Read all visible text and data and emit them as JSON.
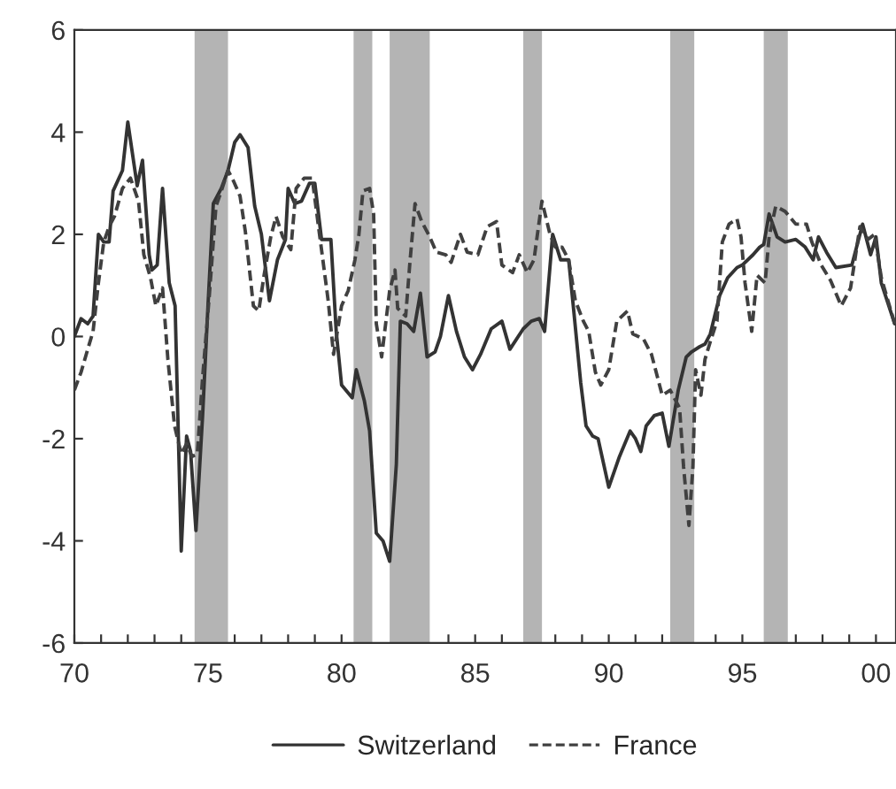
{
  "chart_data": {
    "type": "line",
    "xlim": [
      1970,
      2000.75
    ],
    "xticks": [
      {
        "value": 1970,
        "label": "70"
      },
      {
        "value": 1971,
        "label": null
      },
      {
        "value": 1972,
        "label": null
      },
      {
        "value": 1973,
        "label": null
      },
      {
        "value": 1974,
        "label": null
      },
      {
        "value": 1975,
        "label": "75"
      },
      {
        "value": 1976,
        "label": null
      },
      {
        "value": 1977,
        "label": null
      },
      {
        "value": 1978,
        "label": null
      },
      {
        "value": 1979,
        "label": null
      },
      {
        "value": 1980,
        "label": "80"
      },
      {
        "value": 1981,
        "label": null
      },
      {
        "value": 1982,
        "label": null
      },
      {
        "value": 1983,
        "label": null
      },
      {
        "value": 1984,
        "label": null
      },
      {
        "value": 1985,
        "label": "85"
      },
      {
        "value": 1986,
        "label": null
      },
      {
        "value": 1987,
        "label": null
      },
      {
        "value": 1988,
        "label": null
      },
      {
        "value": 1989,
        "label": null
      },
      {
        "value": 1990,
        "label": "90"
      },
      {
        "value": 1991,
        "label": null
      },
      {
        "value": 1992,
        "label": null
      },
      {
        "value": 1993,
        "label": null
      },
      {
        "value": 1994,
        "label": null
      },
      {
        "value": 1995,
        "label": "95"
      },
      {
        "value": 1996,
        "label": null
      },
      {
        "value": 1997,
        "label": null
      },
      {
        "value": 1998,
        "label": null
      },
      {
        "value": 1999,
        "label": null
      },
      {
        "value": 2000,
        "label": "00"
      }
    ],
    "ylim": [
      -6,
      6
    ],
    "yticks": [
      -6,
      -4,
      -2,
      0,
      2,
      4,
      6
    ],
    "grid": false,
    "legend": "bottom",
    "bands": [
      {
        "axis": "x",
        "from": 1974.5,
        "to": 1975.75,
        "color": "#b4b4b4"
      },
      {
        "axis": "x",
        "from": 1980.45,
        "to": 1981.15,
        "color": "#b4b4b4"
      },
      {
        "axis": "x",
        "from": 1981.8,
        "to": 1983.3,
        "color": "#b4b4b4"
      },
      {
        "axis": "x",
        "from": 1986.8,
        "to": 1987.5,
        "color": "#b4b4b4"
      },
      {
        "axis": "x",
        "from": 1992.3,
        "to": 1993.2,
        "color": "#b4b4b4"
      },
      {
        "axis": "x",
        "from": 1995.8,
        "to": 1996.7,
        "color": "#b4b4b4"
      }
    ],
    "series": [
      {
        "name": "Switzerland",
        "color": "#333333",
        "line_style": "solid",
        "x": [
          1970.0,
          1970.25,
          1970.5,
          1970.7,
          1970.9,
          1971.1,
          1971.3,
          1971.45,
          1971.8,
          1972.0,
          1972.35,
          1972.55,
          1972.8,
          1972.9,
          1973.1,
          1973.3,
          1973.55,
          1973.77,
          1974.0,
          1974.2,
          1974.35,
          1974.55,
          1974.8,
          1975.0,
          1975.2,
          1975.5,
          1975.75,
          1976.0,
          1976.2,
          1976.5,
          1976.75,
          1977.0,
          1977.3,
          1977.6,
          1977.9,
          1978.0,
          1978.25,
          1978.5,
          1978.8,
          1979.0,
          1979.25,
          1979.6,
          1979.8,
          1980.0,
          1980.4,
          1980.55,
          1980.85,
          1981.05,
          1981.3,
          1981.55,
          1981.8,
          1982.05,
          1982.2,
          1982.45,
          1982.7,
          1982.95,
          1983.2,
          1983.5,
          1983.7,
          1984.0,
          1984.3,
          1984.6,
          1984.9,
          1985.2,
          1985.6,
          1986.0,
          1986.3,
          1986.8,
          1987.1,
          1987.4,
          1987.6,
          1987.9,
          1988.2,
          1988.5,
          1988.7,
          1988.95,
          1989.15,
          1989.4,
          1989.6,
          1990.0,
          1990.4,
          1990.8,
          1991.0,
          1991.2,
          1991.4,
          1991.7,
          1992.0,
          1992.25,
          1992.6,
          1992.9,
          1993.1,
          1993.4,
          1993.6,
          1993.8,
          1994.15,
          1994.45,
          1994.8,
          1995.0,
          1995.4,
          1995.65,
          1995.8,
          1996.0,
          1996.3,
          1996.6,
          1997.0,
          1997.35,
          1997.65,
          1997.85,
          1998.15,
          1998.5,
          1999.1,
          1999.5,
          1999.8,
          2000.0,
          2000.2,
          2000.7
        ],
        "values": [
          0.0,
          0.35,
          0.25,
          0.4,
          2.0,
          1.85,
          1.85,
          2.85,
          3.25,
          4.2,
          2.95,
          3.45,
          1.6,
          1.3,
          1.4,
          2.9,
          1.05,
          0.6,
          -4.2,
          -1.95,
          -2.25,
          -3.8,
          -1.55,
          0.6,
          2.6,
          2.9,
          3.25,
          3.8,
          3.95,
          3.7,
          2.55,
          2.0,
          0.7,
          1.5,
          1.9,
          2.9,
          2.6,
          2.65,
          3.0,
          3.0,
          1.9,
          1.9,
          0.1,
          -0.95,
          -1.2,
          -0.65,
          -1.25,
          -1.85,
          -3.85,
          -4.0,
          -4.4,
          -2.5,
          0.3,
          0.25,
          0.1,
          0.85,
          -0.4,
          -0.3,
          0.0,
          0.8,
          0.1,
          -0.4,
          -0.65,
          -0.35,
          0.15,
          0.3,
          -0.25,
          0.15,
          0.3,
          0.35,
          0.1,
          2.0,
          1.5,
          1.5,
          0.45,
          -0.9,
          -1.75,
          -1.95,
          -2.0,
          -2.95,
          -2.35,
          -1.85,
          -2.0,
          -2.25,
          -1.75,
          -1.55,
          -1.5,
          -2.15,
          -1.05,
          -0.4,
          -0.3,
          -0.2,
          -0.15,
          0.05,
          0.8,
          1.15,
          1.35,
          1.4,
          1.6,
          1.75,
          1.8,
          2.4,
          1.95,
          1.85,
          1.9,
          1.75,
          1.5,
          1.95,
          1.65,
          1.35,
          1.4,
          2.2,
          1.6,
          1.95,
          1.05,
          0.25
        ]
      },
      {
        "name": "France",
        "color": "#404040",
        "line_style": "dashed",
        "x": [
          1970.0,
          1970.25,
          1970.5,
          1970.7,
          1970.9,
          1971.1,
          1971.3,
          1971.5,
          1971.8,
          1972.1,
          1972.4,
          1972.6,
          1972.85,
          1973.05,
          1973.3,
          1973.5,
          1973.75,
          1974.0,
          1974.2,
          1974.4,
          1974.6,
          1974.8,
          1975.05,
          1975.3,
          1975.5,
          1975.75,
          1975.95,
          1976.2,
          1976.4,
          1976.7,
          1976.9,
          1977.1,
          1977.35,
          1977.55,
          1977.8,
          1978.1,
          1978.3,
          1978.6,
          1978.9,
          1979.25,
          1979.5,
          1979.7,
          1980.0,
          1980.25,
          1980.5,
          1980.65,
          1980.8,
          1981.05,
          1981.2,
          1981.3,
          1981.5,
          1981.8,
          1982.0,
          1982.1,
          1982.4,
          1982.55,
          1982.75,
          1983.0,
          1983.3,
          1983.55,
          1983.9,
          1984.1,
          1984.45,
          1984.7,
          1985.1,
          1985.45,
          1985.8,
          1986.0,
          1986.4,
          1986.65,
          1986.95,
          1987.2,
          1987.5,
          1987.8,
          1988.0,
          1988.25,
          1988.5,
          1988.75,
          1989.05,
          1989.25,
          1989.5,
          1989.7,
          1990.0,
          1990.3,
          1990.7,
          1990.9,
          1991.3,
          1991.6,
          1992.0,
          1992.3,
          1992.65,
          1992.8,
          1993.0,
          1993.15,
          1993.25,
          1993.45,
          1993.6,
          1993.8,
          1994.05,
          1994.25,
          1994.5,
          1994.8,
          1994.95,
          1995.1,
          1995.35,
          1995.55,
          1995.85,
          1996.0,
          1996.25,
          1996.6,
          1997.0,
          1997.4,
          1997.6,
          1997.95,
          1998.3,
          1998.7,
          1999.05,
          1999.4,
          1999.7,
          1999.95,
          2000.2,
          2000.7
        ],
        "values": [
          -1.05,
          -0.7,
          -0.25,
          0.1,
          1.05,
          1.85,
          2.15,
          2.35,
          2.9,
          3.1,
          2.65,
          1.6,
          1.15,
          0.6,
          0.95,
          -0.45,
          -1.75,
          -2.3,
          -2.1,
          -2.35,
          -2.3,
          -0.8,
          0.8,
          2.55,
          2.85,
          3.25,
          3.05,
          2.75,
          2.05,
          0.6,
          0.5,
          1.2,
          1.95,
          2.35,
          1.95,
          1.7,
          2.9,
          3.1,
          3.1,
          1.7,
          0.7,
          -0.35,
          0.6,
          0.9,
          1.5,
          2.0,
          2.85,
          2.9,
          2.4,
          0.25,
          -0.4,
          0.9,
          1.3,
          0.55,
          0.4,
          1.4,
          2.6,
          2.25,
          1.95,
          1.65,
          1.6,
          1.45,
          2.0,
          1.65,
          1.6,
          2.15,
          2.25,
          1.4,
          1.25,
          1.6,
          1.25,
          1.5,
          2.65,
          2.0,
          1.75,
          1.75,
          1.5,
          0.7,
          0.3,
          0.1,
          -0.7,
          -0.95,
          -0.65,
          0.3,
          0.5,
          0.05,
          -0.05,
          -0.35,
          -1.15,
          -1.05,
          -1.4,
          -2.55,
          -3.7,
          -2.55,
          -0.65,
          -1.15,
          -0.45,
          -0.1,
          0.3,
          1.85,
          2.2,
          2.3,
          1.95,
          1.05,
          0.1,
          1.2,
          1.05,
          1.95,
          2.55,
          2.45,
          2.2,
          2.2,
          1.85,
          1.4,
          1.1,
          0.6,
          0.95,
          2.15,
          1.9,
          2.0,
          1.15,
          0.25
        ]
      }
    ]
  }
}
